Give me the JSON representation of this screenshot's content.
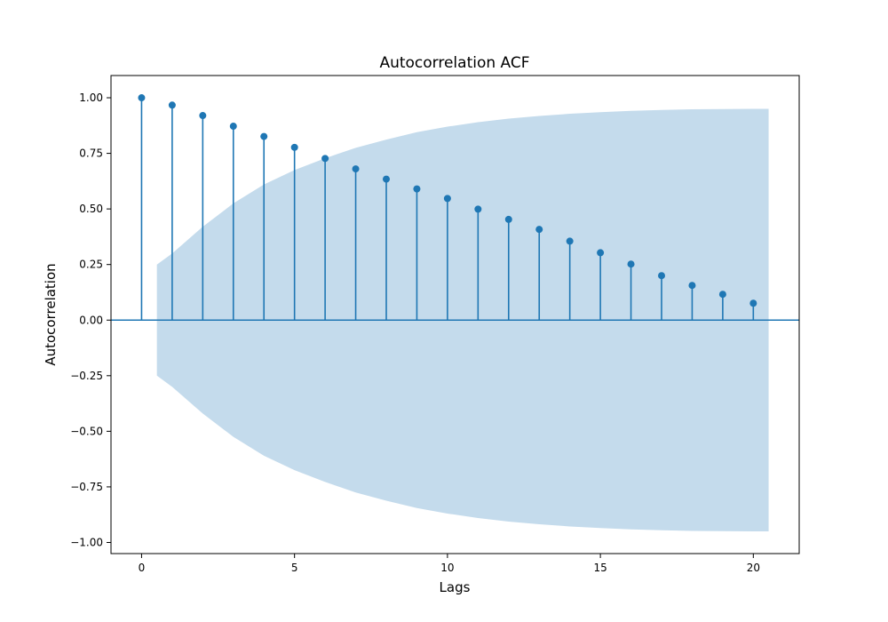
{
  "chart_data": {
    "type": "stem",
    "title": "Autocorrelation ACF",
    "xlabel": "Lags",
    "ylabel": "Autocorrelation",
    "xlim": [
      -1,
      21.5
    ],
    "ylim": [
      -1.05,
      1.1
    ],
    "x_ticks": [
      0,
      5,
      10,
      15,
      20
    ],
    "y_ticks": [
      -1.0,
      -0.75,
      -0.5,
      -0.25,
      0.0,
      0.25,
      0.5,
      0.75,
      1.0
    ],
    "x_tick_labels": [
      "0",
      "5",
      "10",
      "15",
      "20"
    ],
    "y_tick_labels": [
      "−1.00",
      "−0.75",
      "−0.50",
      "−0.25",
      "0.00",
      "0.25",
      "0.50",
      "0.75",
      "1.00"
    ],
    "lags": [
      0,
      1,
      2,
      3,
      4,
      5,
      6,
      7,
      8,
      9,
      10,
      11,
      12,
      13,
      14,
      15,
      16,
      17,
      18,
      19,
      20
    ],
    "values": [
      1.0,
      0.967,
      0.92,
      0.872,
      0.826,
      0.777,
      0.727,
      0.68,
      0.634,
      0.59,
      0.547,
      0.499,
      0.453,
      0.408,
      0.355,
      0.303,
      0.252,
      0.2,
      0.156,
      0.116,
      0.076
    ],
    "confidence_band": {
      "x": [
        0.5,
        1,
        2,
        3,
        4,
        5,
        6,
        7,
        8,
        9,
        10,
        11,
        12,
        13,
        14,
        15,
        16,
        17,
        18,
        19,
        20,
        20.5
      ],
      "upper": [
        0.25,
        0.3,
        0.42,
        0.525,
        0.61,
        0.675,
        0.728,
        0.775,
        0.812,
        0.845,
        0.87,
        0.89,
        0.906,
        0.918,
        0.928,
        0.935,
        0.941,
        0.945,
        0.948,
        0.949,
        0.95,
        0.95
      ]
    },
    "colors": {
      "stem": "#1f77b4",
      "band": "#c4dbec",
      "zero_line": "#1f77b4"
    },
    "grid": false,
    "legend": "none"
  }
}
